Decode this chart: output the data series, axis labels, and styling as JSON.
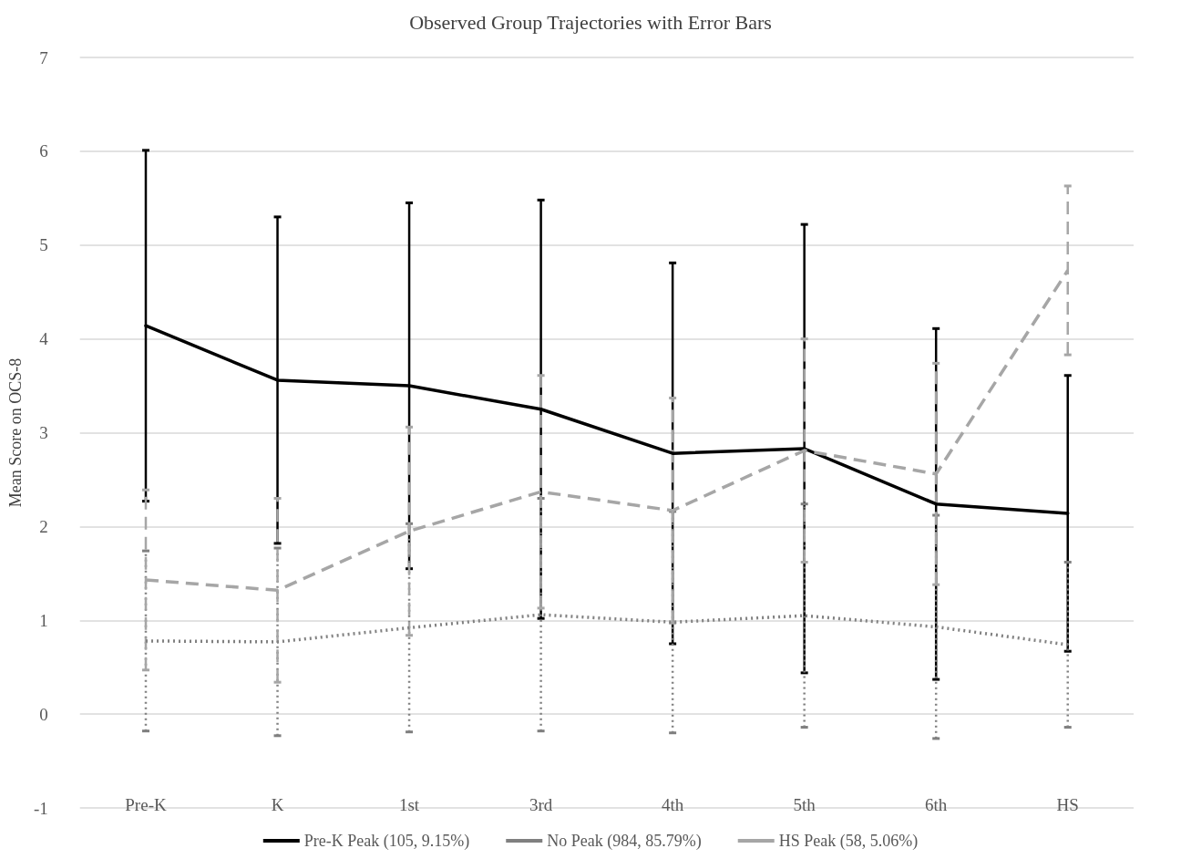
{
  "chart_data": {
    "type": "line",
    "title": "Observed Group Trajectories with Error Bars",
    "ylabel": "Mean Score on OCS-8",
    "categories": [
      "Pre-K",
      "K",
      "1st",
      "3rd",
      "4th",
      "5th",
      "6th",
      "HS"
    ],
    "series": [
      {
        "name": "Pre-K Peak (105, 9.15%)",
        "color": "#000000",
        "line_style": "solid",
        "values": [
          4.14,
          3.56,
          3.5,
          3.25,
          2.78,
          2.83,
          2.24,
          2.14
        ],
        "errors": [
          1.87,
          1.74,
          1.95,
          2.23,
          2.03,
          2.39,
          1.87,
          1.47
        ]
      },
      {
        "name": "No Peak (984, 85.79%)",
        "color": "#808080",
        "line_style": "dotted",
        "values": [
          0.78,
          0.77,
          0.92,
          1.06,
          0.98,
          1.05,
          0.93,
          0.74
        ],
        "errors": [
          0.96,
          1.0,
          1.11,
          1.24,
          1.18,
          1.19,
          1.19,
          0.88
        ]
      },
      {
        "name": "HS Peak (58, 5.06%)",
        "color": "#a6a6a6",
        "line_style": "dashed",
        "values": [
          1.43,
          1.32,
          1.95,
          2.37,
          2.17,
          2.81,
          2.56,
          4.73
        ],
        "errors": [
          0.96,
          0.98,
          1.11,
          1.24,
          1.2,
          1.19,
          1.18,
          0.9
        ]
      }
    ],
    "ylim": [
      -1,
      7
    ],
    "yticks": [
      -1,
      0,
      1,
      2,
      3,
      4,
      5,
      6,
      7
    ],
    "grid": "y",
    "legend": "bottom",
    "marker": "none"
  }
}
